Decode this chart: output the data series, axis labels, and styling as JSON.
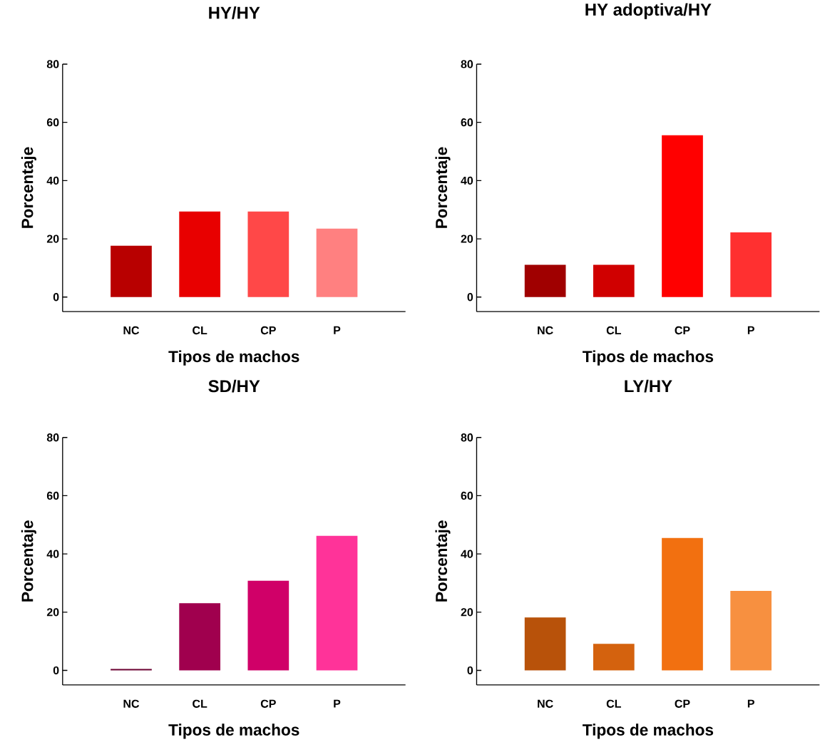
{
  "chart_data": [
    {
      "type": "bar",
      "title": "HY/HY",
      "xlabel": "Tipos de machos",
      "ylabel": "Porcentaje",
      "categories": [
        "NC",
        "CL",
        "CP",
        "P"
      ],
      "values": [
        17.6,
        29.4,
        29.4,
        23.5
      ],
      "colors": [
        "#b80000",
        "#e80000",
        "#ff4848",
        "#ff8080"
      ],
      "ylim": [
        -5,
        80
      ],
      "yticks": [
        0,
        20,
        40,
        60,
        80
      ]
    },
    {
      "type": "bar",
      "title": "HY adoptiva/HY",
      "xlabel": "Tipos de machos",
      "ylabel": "Porcentaje",
      "categories": [
        "NC",
        "CL",
        "CP",
        "P"
      ],
      "values": [
        11.1,
        11.1,
        55.6,
        22.2
      ],
      "colors": [
        "#a00000",
        "#d00000",
        "#ff0000",
        "#ff3030"
      ],
      "ylim": [
        -5,
        80
      ],
      "yticks": [
        0,
        20,
        40,
        60,
        80
      ]
    },
    {
      "type": "bar",
      "title": "SD/HY",
      "xlabel": "Tipos de machos",
      "ylabel": "Porcentaje",
      "categories": [
        "NC",
        "CL",
        "CP",
        "P"
      ],
      "values": [
        0.5,
        23.1,
        30.8,
        46.2
      ],
      "colors": [
        "#6a0030",
        "#a0004e",
        "#d00068",
        "#ff3399"
      ],
      "ylim": [
        -5,
        80
      ],
      "yticks": [
        0,
        20,
        40,
        60,
        80
      ]
    },
    {
      "type": "bar",
      "title": "LY/HY",
      "xlabel": "Tipos de machos",
      "ylabel": "Porcentaje",
      "categories": [
        "NC",
        "CL",
        "CP",
        "P"
      ],
      "values": [
        18.2,
        9.1,
        45.5,
        27.3
      ],
      "colors": [
        "#b8520a",
        "#d4620e",
        "#f27010",
        "#f79040"
      ],
      "ylim": [
        -5,
        80
      ],
      "yticks": [
        0,
        20,
        40,
        60,
        80
      ]
    }
  ]
}
